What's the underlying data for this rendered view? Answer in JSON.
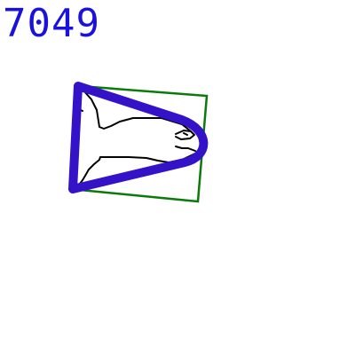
{
  "label": {
    "text": "7049",
    "color": "#1a10e0"
  },
  "drawing": {
    "subject": "fish-sketch",
    "sketch_color": "#000000"
  },
  "annotations": {
    "bounding_box_color": "#0a7a0a",
    "outline_color": "#3412c8"
  }
}
